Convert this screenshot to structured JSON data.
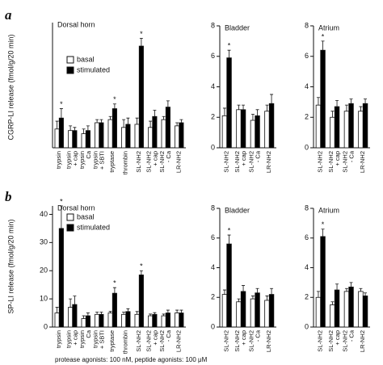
{
  "panel_labels": [
    "a",
    "b"
  ],
  "y_labels": [
    "CGRP-LI release (fmol/g/20 min)",
    "SP-LI release (fmol/g/20 min)"
  ],
  "footnote": "protease agonists: 100 nM, peptide agonists: 100 μM",
  "chart_data": [
    {
      "type": "bar",
      "title": "Dorsal horn",
      "star": "*",
      "starred": [
        0,
        4,
        6
      ],
      "legend": "upper left",
      "categories": [
        [
          "trypsin"
        ],
        [
          "trypsin",
          "+ cap"
        ],
        [
          "trypsin",
          "Ca"
        ],
        [
          "trypsin",
          "+ SBTI"
        ],
        [
          "tryptase"
        ],
        [
          "thrombin"
        ],
        [
          "SL-NH2"
        ],
        [
          "SL-NH2",
          "+ cap"
        ],
        [
          "SL-NH2",
          "- Ca"
        ],
        [
          "LR-NH2"
        ]
      ],
      "series": [
        {
          "name": "basal",
          "color": "#ffffff",
          "values": [
            1.2,
            1.1,
            0.9,
            1.6,
            1.8,
            1.3,
            1.5,
            1.3,
            1.8,
            1.4
          ],
          "errors": [
            0.5,
            0.3,
            0.3,
            0.2,
            0.2,
            0.5,
            0.4,
            0.4,
            0.2,
            0.2
          ]
        },
        {
          "name": "stimulated",
          "color": "#000000",
          "values": [
            1.9,
            1.1,
            1.1,
            1.6,
            2.5,
            1.5,
            6.5,
            2.0,
            2.6,
            1.6
          ],
          "errors": [
            0.6,
            0.2,
            0.3,
            0.2,
            0.3,
            0.4,
            0.5,
            0.4,
            0.4,
            0.2
          ]
        }
      ],
      "ylim": [
        0,
        8
      ]
    },
    {
      "type": "bar",
      "title": "Bladder",
      "star": "*",
      "starred": [
        0
      ],
      "categories": [
        [
          "SL-NH2"
        ],
        [
          "SL-NH2",
          "+ cap"
        ],
        [
          "SL-NH2",
          "- Ca"
        ],
        [
          "LR-NH2"
        ]
      ],
      "series": [
        {
          "color": "#ffffff",
          "values": [
            2.1,
            2.5,
            1.8,
            2.4
          ],
          "errors": [
            0.5,
            0.3,
            0.4,
            0.4
          ]
        },
        {
          "color": "#000000",
          "values": [
            5.9,
            2.5,
            2.1,
            2.9
          ],
          "errors": [
            0.5,
            0.3,
            0.4,
            0.6
          ]
        }
      ],
      "ylim": [
        0,
        8
      ],
      "yticks": [
        0,
        2,
        4,
        6,
        8
      ]
    },
    {
      "type": "bar",
      "title": "Atrium",
      "star": "*",
      "starred": [
        0
      ],
      "categories": [
        [
          "SL-NH2"
        ],
        [
          "SL-NH2",
          "+ cap"
        ],
        [
          "SL-NH2",
          "- Ca"
        ],
        [
          "LR-NH2"
        ]
      ],
      "series": [
        {
          "color": "#ffffff",
          "values": [
            2.8,
            2.0,
            2.4,
            2.4
          ],
          "errors": [
            0.5,
            0.4,
            0.4,
            0.3
          ]
        },
        {
          "color": "#000000",
          "values": [
            6.4,
            2.7,
            2.9,
            2.9
          ],
          "errors": [
            0.6,
            0.4,
            0.3,
            0.3
          ]
        }
      ],
      "ylim": [
        0,
        8
      ],
      "yticks": [
        0,
        2,
        4,
        6,
        8
      ]
    },
    {
      "type": "bar",
      "title": "Dorsal horn",
      "star": "*",
      "starred": [
        0,
        4,
        6
      ],
      "legend": "upper left",
      "categories": [
        [
          "trypsin"
        ],
        [
          "trypsin",
          "+ cap"
        ],
        [
          "trypsin",
          "Ca"
        ],
        [
          "trypsin",
          "+ SBTI"
        ],
        [
          "tryptase"
        ],
        [
          "thrombin"
        ],
        [
          "SL-NH2"
        ],
        [
          "SL-NH2",
          "+ cap"
        ],
        [
          "SL-NH2",
          "- Ca"
        ],
        [
          "LR-NH2"
        ]
      ],
      "series": [
        {
          "name": "basal",
          "color": "#ffffff",
          "values": [
            5,
            7,
            3,
            4.5,
            5,
            4.5,
            4.5,
            4,
            4,
            5
          ],
          "errors": [
            2,
            3,
            1,
            0.8,
            0.6,
            0.8,
            1,
            0.6,
            0.6,
            1
          ]
        },
        {
          "name": "stimulated",
          "color": "#000000",
          "values": [
            35,
            8,
            4,
            4.5,
            12,
            5.5,
            18.5,
            4.5,
            5,
            5
          ],
          "errors": [
            8,
            3,
            1,
            0.8,
            2,
            1,
            1.5,
            0.6,
            1,
            1
          ]
        }
      ],
      "ylim": [
        0,
        43
      ],
      "yticks": [
        0,
        10,
        20,
        30,
        40
      ]
    },
    {
      "type": "bar",
      "title": "Bladder",
      "star": "*",
      "starred": [
        0
      ],
      "categories": [
        [
          "SL-NH2"
        ],
        [
          "SL-NH2",
          "+ cap"
        ],
        [
          "SL-NH2",
          "- Ca"
        ],
        [
          "LR-NH2"
        ]
      ],
      "series": [
        {
          "color": "#ffffff",
          "values": [
            2.2,
            1.7,
            1.9,
            1.8
          ],
          "errors": [
            0.3,
            0.2,
            0.2,
            0.3
          ]
        },
        {
          "color": "#000000",
          "values": [
            5.6,
            2.4,
            2.3,
            2.2
          ],
          "errors": [
            0.6,
            0.4,
            0.3,
            0.4
          ]
        }
      ],
      "ylim": [
        0,
        8
      ],
      "yticks": [
        0,
        2,
        4,
        6,
        8
      ]
    },
    {
      "type": "bar",
      "title": "Atrium",
      "star": "*",
      "starred": [
        0
      ],
      "categories": [
        [
          "SL-NH2"
        ],
        [
          "SL-NH2",
          "+ cap"
        ],
        [
          "SL-NH2",
          "- Ca"
        ],
        [
          "LR-NH2"
        ]
      ],
      "series": [
        {
          "color": "#ffffff",
          "values": [
            2.0,
            1.5,
            2.4,
            2.4
          ],
          "errors": [
            0.4,
            0.2,
            0.2,
            0.2
          ]
        },
        {
          "color": "#000000",
          "values": [
            6.1,
            2.5,
            2.7,
            2.1
          ],
          "errors": [
            0.5,
            0.4,
            0.3,
            0.2
          ]
        }
      ],
      "ylim": [
        0,
        8
      ],
      "yticks": [
        0,
        2,
        4,
        6,
        8
      ]
    }
  ]
}
